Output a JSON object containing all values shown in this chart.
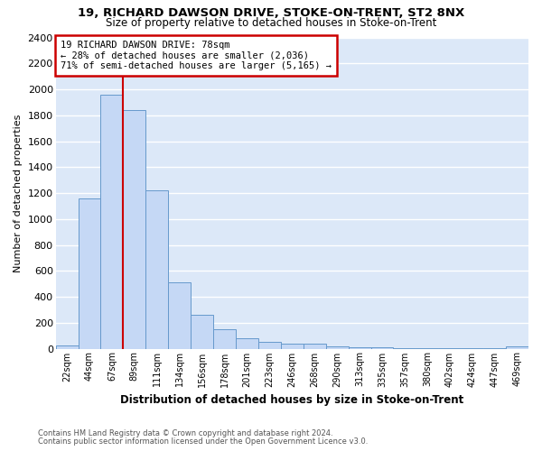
{
  "title1": "19, RICHARD DAWSON DRIVE, STOKE-ON-TRENT, ST2 8NX",
  "title2": "Size of property relative to detached houses in Stoke-on-Trent",
  "xlabel": "Distribution of detached houses by size in Stoke-on-Trent",
  "ylabel": "Number of detached properties",
  "bin_labels": [
    "22sqm",
    "44sqm",
    "67sqm",
    "89sqm",
    "111sqm",
    "134sqm",
    "156sqm",
    "178sqm",
    "201sqm",
    "223sqm",
    "246sqm",
    "268sqm",
    "290sqm",
    "313sqm",
    "335sqm",
    "357sqm",
    "380sqm",
    "402sqm",
    "424sqm",
    "447sqm",
    "469sqm"
  ],
  "bar_values": [
    25,
    1155,
    1960,
    1840,
    1220,
    510,
    260,
    150,
    80,
    55,
    38,
    38,
    15,
    10,
    8,
    5,
    5,
    5,
    5,
    5,
    15
  ],
  "bar_color": "#c5d8f5",
  "bar_edge_color": "#6699cc",
  "vline_color": "#cc0000",
  "annotation_line1": "19 RICHARD DAWSON DRIVE: 78sqm",
  "annotation_line2": "← 28% of detached houses are smaller (2,036)",
  "annotation_line3": "71% of semi-detached houses are larger (5,165) →",
  "annotation_box_color": "#ffffff",
  "annotation_box_edge": "#cc0000",
  "ylim": [
    0,
    2400
  ],
  "yticks": [
    0,
    200,
    400,
    600,
    800,
    1000,
    1200,
    1400,
    1600,
    1800,
    2000,
    2200,
    2400
  ],
  "footnote1": "Contains HM Land Registry data © Crown copyright and database right 2024.",
  "footnote2": "Contains public sector information licensed under the Open Government Licence v3.0.",
  "fig_bg_color": "#ffffff",
  "plot_bg_color": "#dce8f8",
  "grid_color": "#ffffff"
}
